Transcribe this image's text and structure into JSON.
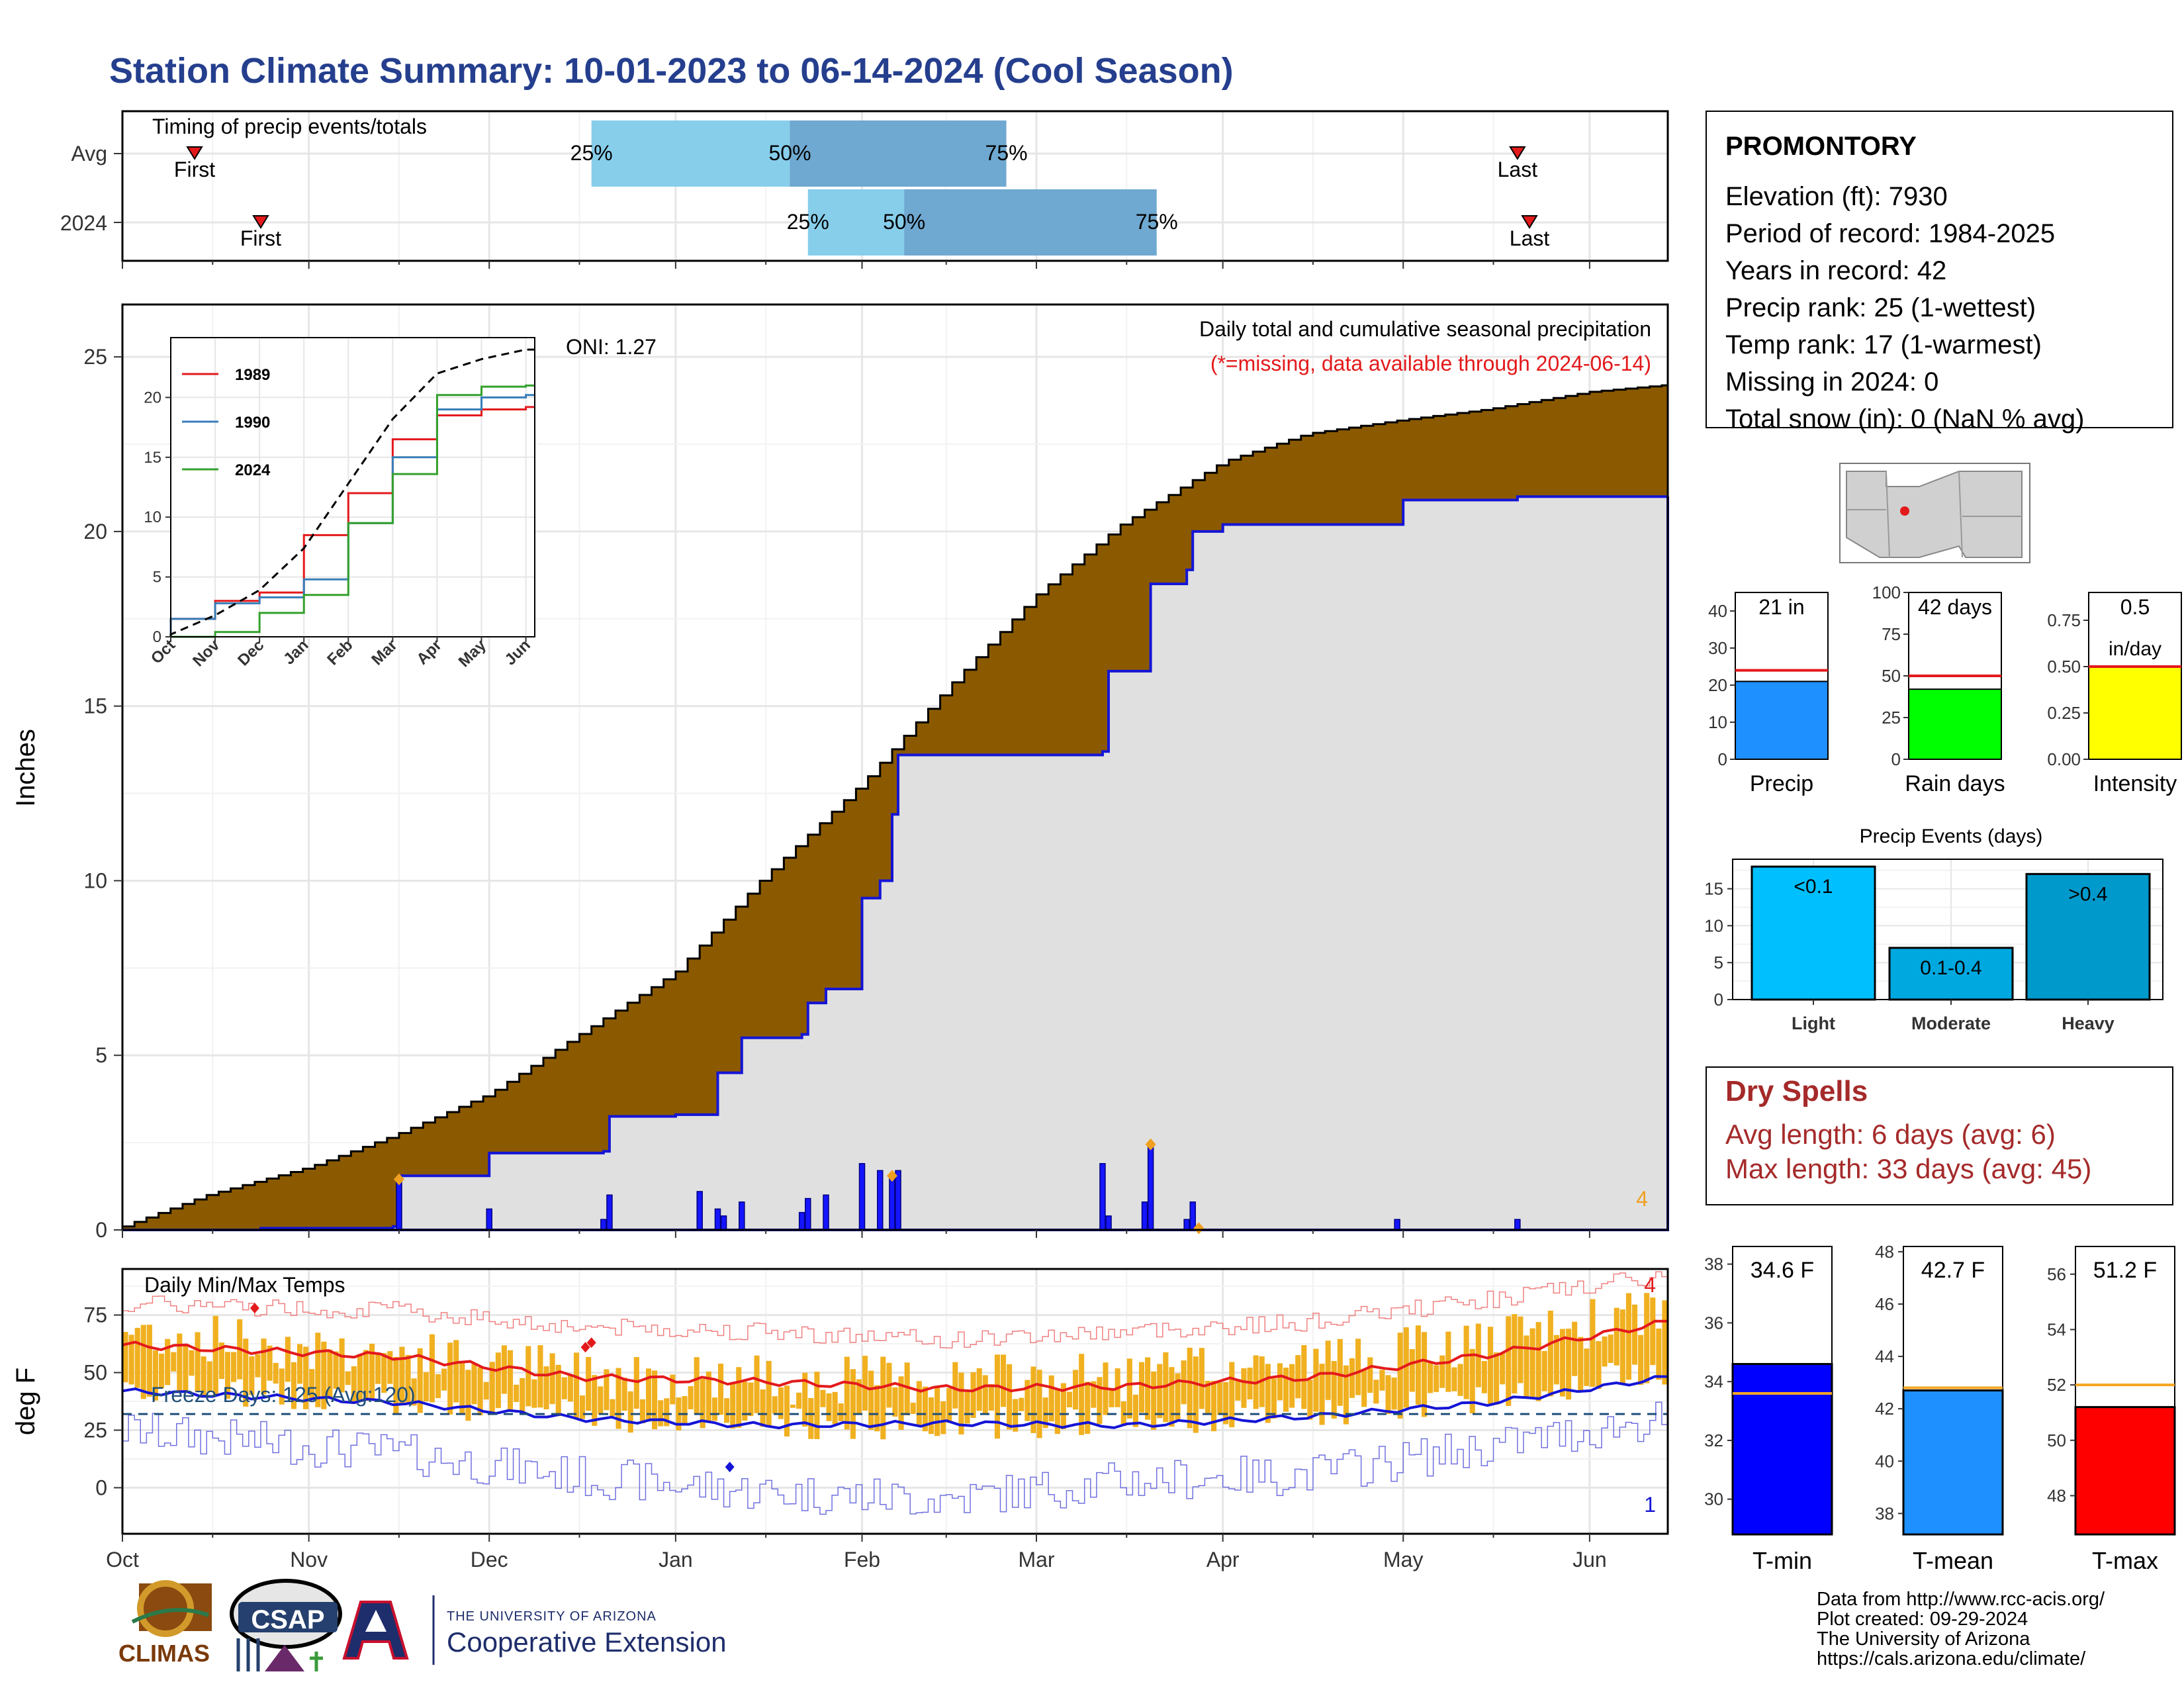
{
  "title": "Station Climate Summary: 10-01-2023 to 06-14-2024 (Cool Season)",
  "months": [
    "Oct",
    "Nov",
    "Dec",
    "Jan",
    "Feb",
    "Mar",
    "Apr",
    "May",
    "Jun"
  ],
  "timing": {
    "title": "Timing of precip events/totals",
    "rows": [
      {
        "label": "Avg",
        "first": "First",
        "last": "Last",
        "p25": "25%",
        "p50": "50%",
        "p75": "75%"
      },
      {
        "label": "2024",
        "first": "First",
        "last": "Last",
        "p25": "25%",
        "p50": "50%",
        "p75": "75%"
      }
    ]
  },
  "precip_panel": {
    "ylabel": "Inches",
    "caption": "Daily total and cumulative seasonal precipitation",
    "missing_note": "(*=missing, data available through 2024-06-14)",
    "oni": "ONI: 1.27",
    "count_label": "4",
    "yticks": [
      "0",
      "5",
      "10",
      "15",
      "20",
      "25"
    ]
  },
  "inset": {
    "legend": [
      "1989",
      "1990",
      "2024"
    ],
    "yticks": [
      "0",
      "5",
      "10",
      "15",
      "20"
    ],
    "months": [
      "Oct",
      "Nov",
      "Dec",
      "Jan",
      "Feb",
      "Mar",
      "Apr",
      "May",
      "Jun"
    ]
  },
  "temp_panel": {
    "ylabel": "deg F",
    "title": "Daily Min/Max Temps",
    "freeze_label": "Freeze Days: 125 (Avg:120)",
    "count_high": "4",
    "count_low": "1",
    "yticks": [
      "0",
      "25",
      "50",
      "75"
    ]
  },
  "station": {
    "name": "PROMONTORY",
    "lines": [
      "Elevation (ft): 7930",
      "Period of record: 1984-2025",
      "Years in record: 42",
      "Precip rank: 25 (1-wettest)",
      "Temp rank: 17 (1-warmest)",
      "Missing in 2024: 0",
      "Total snow (in): 0 (NaN % avg)"
    ]
  },
  "mini_bars": [
    {
      "label": "Precip",
      "value_text": "21 in",
      "yticks": [
        "0",
        "10",
        "20",
        "30",
        "40"
      ]
    },
    {
      "label": "Rain days",
      "value_text": "42 days",
      "yticks": [
        "0",
        "25",
        "50",
        "75",
        "100"
      ]
    },
    {
      "label": "Intensity",
      "value_text": "0.5",
      "value_text2": "in/day",
      "yticks": [
        "0.00",
        "0.25",
        "0.50",
        "0.75"
      ]
    }
  ],
  "events": {
    "title": "Precip Events (days)",
    "yticks": [
      "0",
      "5",
      "10",
      "15"
    ],
    "bars": [
      {
        "label": "Light",
        "text": "<0.1"
      },
      {
        "label": "Moderate",
        "text": "0.1-0.4"
      },
      {
        "label": "Heavy",
        "text": ">0.4"
      }
    ]
  },
  "dry_spells": {
    "title": "Dry Spells",
    "avg": "Avg length: 6 days (avg: 6)",
    "max": "Max length: 33 days (avg: 45)"
  },
  "temp_bars": [
    {
      "label": "T-min",
      "value_text": "34.6 F",
      "yticks": [
        "30",
        "32",
        "34",
        "36",
        "38"
      ]
    },
    {
      "label": "T-mean",
      "value_text": "42.7 F",
      "yticks": [
        "38",
        "40",
        "42",
        "44",
        "46",
        "48"
      ]
    },
    {
      "label": "T-max",
      "value_text": "51.2 F",
      "yticks": [
        "48",
        "50",
        "52",
        "54",
        "56"
      ]
    }
  ],
  "footer": {
    "lines": [
      "Data from http://www.rcc-acis.org/",
      "Plot created: 09-29-2024",
      "The University of Arizona",
      "https://cals.arizona.edu/climate/"
    ],
    "logo_climas": "CLIMAS",
    "logo_csap": "CSAP",
    "ua_small": "THE UNIVERSITY OF ARIZONA",
    "ua_big": "Cooperative Extension"
  },
  "colors": {
    "title": "#253f8e",
    "brown": "#8b5a00",
    "gray_fill": "#e0e0e0",
    "blue_line": "#1515d6",
    "light_blue": "#87ceeb",
    "mid_blue": "#6fa8d0",
    "orange": "#f0b020",
    "red": "#e31a1c",
    "dry_red": "#a52a2a"
  },
  "chart_data": [
    {
      "type": "bar",
      "name": "timing",
      "categories": [
        "Avg",
        "2024"
      ],
      "x_axis": "date",
      "series": [
        {
          "category": "Avg",
          "first": "2023-10-13",
          "p25": "2023-12-18",
          "p50": "2024-01-20",
          "p75": "2024-02-25",
          "last": "2024-05-20"
        },
        {
          "category": "2024",
          "first": "2023-10-24",
          "p25": "2024-01-23",
          "p50": "2024-02-08",
          "p75": "2024-03-21",
          "last": "2024-05-22"
        }
      ]
    },
    {
      "type": "area",
      "name": "cumulative_precipitation",
      "ylabel": "Inches",
      "ylim": [
        0,
        26.5
      ],
      "avg_cumulative": {
        "x": [
          "2023-10-01",
          "2023-10-15",
          "2023-11-01",
          "2023-11-15",
          "2023-12-01",
          "2023-12-15",
          "2024-01-01",
          "2024-01-15",
          "2024-02-01",
          "2024-02-15",
          "2024-03-01",
          "2024-03-15",
          "2024-04-01",
          "2024-04-15",
          "2024-05-01",
          "2024-05-15",
          "2024-06-01",
          "2024-06-14"
        ],
        "y": [
          0.1,
          1.0,
          1.8,
          2.7,
          3.9,
          5.5,
          7.4,
          10.0,
          12.8,
          15.5,
          18.2,
          20.2,
          22.0,
          22.8,
          23.2,
          23.5,
          24.0,
          24.2
        ]
      },
      "observed_cumulative": {
        "x": [
          "2023-10-01",
          "2023-10-24",
          "2023-11-15",
          "2023-11-16",
          "2023-12-01",
          "2023-12-20",
          "2023-12-21",
          "2024-01-01",
          "2024-01-05",
          "2024-01-08",
          "2024-01-12",
          "2024-01-22",
          "2024-01-23",
          "2024-01-26",
          "2024-02-01",
          "2024-02-04",
          "2024-02-06",
          "2024-02-07",
          "2024-03-01",
          "2024-03-12",
          "2024-03-13",
          "2024-03-19",
          "2024-03-20",
          "2024-03-26",
          "2024-03-27",
          "2024-04-01",
          "2024-04-30",
          "2024-05-01",
          "2024-05-20",
          "2024-05-21",
          "2024-06-14"
        ],
        "y": [
          0,
          0.05,
          0.1,
          1.55,
          2.2,
          2.25,
          3.25,
          3.3,
          3.3,
          4.5,
          5.5,
          5.6,
          6.5,
          6.9,
          9.5,
          10.0,
          11.9,
          13.6,
          13.6,
          13.7,
          16.0,
          16.0,
          18.5,
          18.9,
          20.0,
          20.2,
          20.2,
          20.9,
          21.0,
          21.0,
          21.0
        ]
      },
      "daily_bars": {
        "x": [
          "2023-11-16",
          "2023-12-01",
          "2023-12-20",
          "2023-12-21",
          "2024-01-05",
          "2024-01-08",
          "2024-01-09",
          "2024-01-12",
          "2024-01-22",
          "2024-01-23",
          "2024-01-26",
          "2024-02-01",
          "2024-02-04",
          "2024-02-06",
          "2024-02-07",
          "2024-03-12",
          "2024-03-13",
          "2024-03-19",
          "2024-03-20",
          "2024-03-26",
          "2024-03-27",
          "2024-04-30",
          "2024-05-20"
        ],
        "y": [
          1.4,
          0.6,
          0.3,
          1.0,
          1.1,
          0.6,
          0.4,
          0.8,
          0.5,
          0.9,
          1.0,
          1.9,
          1.7,
          1.5,
          1.7,
          1.9,
          0.4,
          0.8,
          2.4,
          0.3,
          0.8,
          0.3,
          0.3
        ]
      },
      "missing_markers": [
        "2023-11-16",
        "2024-02-06",
        "2024-03-20",
        "2024-03-28"
      ]
    },
    {
      "type": "line",
      "name": "inset_cumulative",
      "legend": "top-left",
      "ylim": [
        0,
        25
      ],
      "x": [
        "Oct",
        "Nov",
        "Dec",
        "Jan",
        "Feb",
        "Mar",
        "Apr",
        "May",
        "Jun"
      ],
      "series": [
        {
          "name": "1989",
          "values": [
            1.5,
            3.0,
            3.7,
            8.5,
            12.0,
            16.5,
            18.5,
            19.0,
            19.2
          ]
        },
        {
          "name": "1990",
          "values": [
            1.5,
            2.8,
            3.3,
            4.8,
            9.5,
            15.0,
            19.0,
            20.0,
            20.2
          ]
        },
        {
          "name": "2024",
          "values": [
            0.0,
            0.4,
            2.0,
            3.5,
            9.5,
            13.6,
            20.2,
            20.9,
            21.0
          ]
        },
        {
          "values": [
            0.2,
            1.8,
            3.9,
            7.4,
            12.8,
            18.2,
            22.0,
            23.2,
            24.0
          ]
        }
      ]
    },
    {
      "type": "line",
      "name": "daily_temperatures",
      "ylabel": "deg F",
      "ylim": [
        -20,
        95
      ],
      "freeze_threshold": 32,
      "x": [
        "Oct",
        "Nov",
        "Dec",
        "Jan",
        "Feb",
        "Mar",
        "Apr",
        "May",
        "Jun"
      ],
      "series": [
        {
          "name": "avg_max",
          "values": [
            62,
            57,
            48,
            46,
            43,
            44,
            48,
            58,
            72
          ]
        },
        {
          "name": "avg_min",
          "values": [
            42,
            37,
            30,
            27,
            28,
            27,
            31,
            37,
            48
          ]
        },
        {
          "name": "record_max",
          "values": [
            80,
            77,
            70,
            68,
            64,
            68,
            72,
            82,
            92
          ]
        },
        {
          "name": "record_min",
          "values": [
            25,
            15,
            5,
            -2,
            -5,
            3,
            6,
            18,
            30
          ]
        },
        {
          "name": "observed_max",
          "values": [
            68,
            58,
            50,
            47,
            47,
            48,
            55,
            63,
            78
          ]
        },
        {
          "name": "observed_min",
          "values": [
            45,
            38,
            32,
            28,
            28,
            29,
            33,
            40,
            52
          ]
        }
      ]
    },
    {
      "type": "bar",
      "name": "season_totals",
      "categories": [
        "Precip",
        "Rain days",
        "Intensity"
      ],
      "series": [
        {
          "name": "2024",
          "values": [
            21,
            42,
            0.5
          ]
        },
        {
          "name": "average",
          "values": [
            24,
            50,
            0.5
          ]
        }
      ]
    },
    {
      "type": "bar",
      "name": "precip_events",
      "title": "Precip Events (days)",
      "categories": [
        "Light",
        "Moderate",
        "Heavy"
      ],
      "values": [
        18,
        7,
        17
      ],
      "ylim": [
        0,
        19
      ]
    },
    {
      "type": "bar",
      "name": "seasonal_temps",
      "categories": [
        "T-min",
        "T-mean",
        "T-max"
      ],
      "series": [
        {
          "name": "2024",
          "values": [
            34.6,
            42.7,
            51.2
          ]
        },
        {
          "name": "average",
          "values": [
            33.6,
            42.8,
            52.0
          ]
        }
      ]
    }
  ]
}
